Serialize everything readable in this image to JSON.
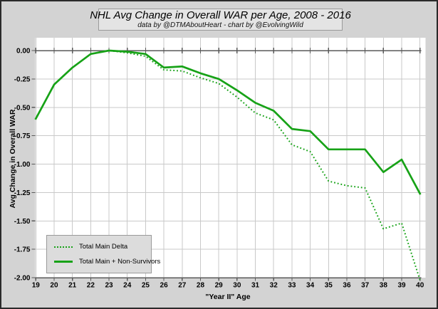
{
  "header": {
    "title": "NHL Avg Change in Overall WAR per Age, 2008 - 2016",
    "subtitle": "data by @DTMAboutHeart - chart by @EvolvingWild"
  },
  "colors": {
    "line_green": "#17a217",
    "axis_dark": "#595959",
    "gridline": "#c9c9c9",
    "plot_background": "#ffffff",
    "canvas_background": "#d3d3d3"
  },
  "chart_data": {
    "type": "line",
    "title": "NHL Avg Change in Overall WAR per Age, 2008 - 2016",
    "subtitle": "data by @DTMAboutHeart - chart by @EvolvingWild",
    "xlabel": "\"Year II\" Age",
    "ylabel": "Avg Change in Overall WAR",
    "x": [
      19,
      20,
      21,
      22,
      23,
      24,
      25,
      26,
      27,
      28,
      29,
      30,
      31,
      32,
      33,
      34,
      35,
      36,
      37,
      38,
      39,
      40
    ],
    "series": [
      {
        "name": "Total Main Delta",
        "style": "dotted",
        "values": [
          -0.6,
          -0.3,
          -0.15,
          -0.03,
          0.0,
          -0.02,
          -0.05,
          -0.17,
          -0.18,
          -0.24,
          -0.29,
          -0.41,
          -0.55,
          -0.61,
          -0.83,
          -0.89,
          -1.15,
          -1.19,
          -1.21,
          -1.57,
          -1.52,
          -2.02
        ]
      },
      {
        "name": "Total Main + Non-Survivors",
        "style": "solid",
        "values": [
          -0.6,
          -0.3,
          -0.15,
          -0.03,
          0.0,
          -0.01,
          -0.03,
          -0.15,
          -0.14,
          -0.2,
          -0.25,
          -0.35,
          -0.46,
          -0.53,
          -0.69,
          -0.71,
          -0.87,
          -0.87,
          -0.87,
          -1.07,
          -0.96,
          -1.26
        ]
      }
    ],
    "yticks": [
      0.0,
      -0.25,
      -0.5,
      -0.75,
      -1.0,
      -1.25,
      -1.5,
      -1.75,
      -2.0
    ],
    "ytick_labels": [
      "0.00",
      "-0.25",
      "-0.50",
      "-0.75",
      "-1.00",
      "-1.25",
      "-1.50",
      "-1.75",
      "-2.00"
    ],
    "ylim": [
      -2.0,
      0.11
    ],
    "xlim": [
      19,
      40
    ],
    "grid": true,
    "legend_position": "bottom-left"
  }
}
